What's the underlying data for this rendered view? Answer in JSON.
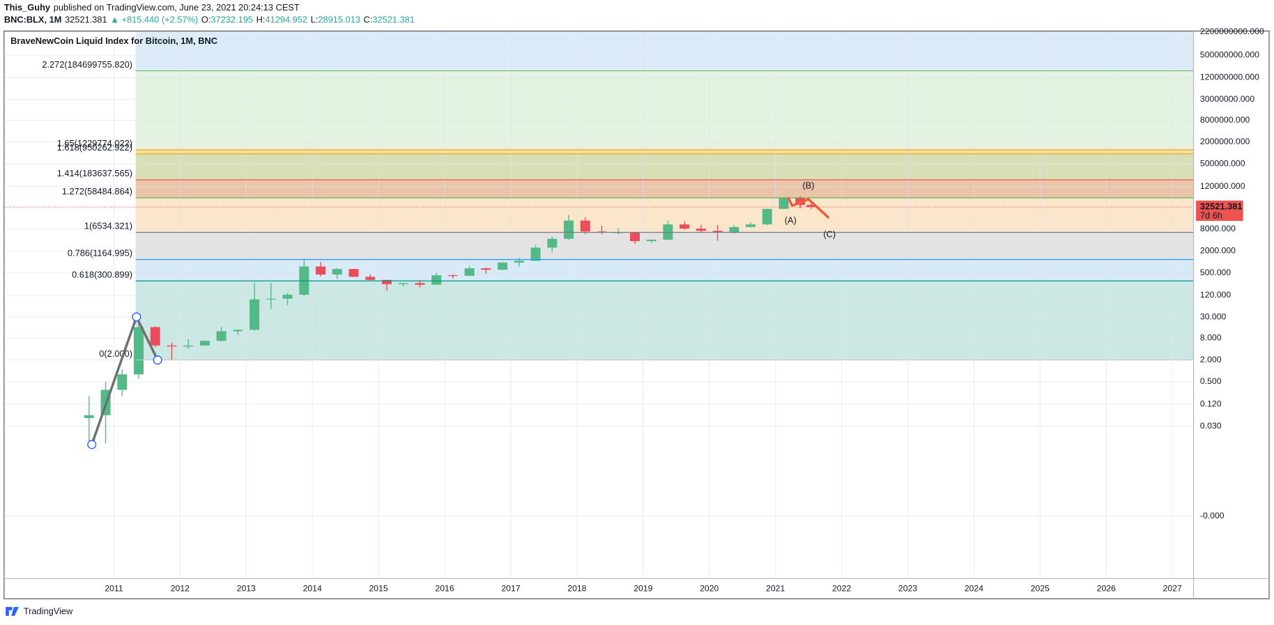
{
  "header": {
    "author": "This_Guhy",
    "published": "published on TradingView.com, June 23, 2021 20:24:13 CEST",
    "symbol": "BNC:BLX, 1M",
    "change": "+815.440 (+2.57%)",
    "open_label": "O:",
    "high_label": "H:",
    "low_label": "L:",
    "close_label": "C:"
  },
  "footer": {
    "brand": "TradingView"
  },
  "chart_data": {
    "type": "candlestick",
    "title": "BraveNewCoin Liquid Index for Bitcoin, 1M, BNC",
    "x": [
      "2010-07",
      "2010-10",
      "2011-01",
      "2011-04",
      "2011-07",
      "2011-10",
      "2012-01",
      "2012-04",
      "2012-07",
      "2012-10",
      "2013-01",
      "2013-04",
      "2013-07",
      "2013-10",
      "2014-01",
      "2014-04",
      "2014-07",
      "2014-10",
      "2015-01",
      "2015-04",
      "2015-07",
      "2015-10",
      "2016-01",
      "2016-04",
      "2016-07",
      "2016-10",
      "2017-01",
      "2017-04",
      "2017-07",
      "2017-10",
      "2018-01",
      "2018-04",
      "2018-07",
      "2018-10",
      "2019-01",
      "2019-04",
      "2019-07",
      "2019-10",
      "2020-01",
      "2020-04",
      "2020-07",
      "2020-10",
      "2021-01",
      "2021-04",
      "2021-06"
    ],
    "open": [
      0.05,
      0.06,
      0.3,
      0.8,
      16,
      5,
      4.7,
      5,
      6.7,
      12.4,
      13.5,
      93,
      97,
      125,
      750,
      450,
      640,
      390,
      320,
      245,
      262,
      236,
      430,
      416,
      670,
      610,
      960,
      1080,
      2480,
      4340,
      13800,
      6900,
      6400,
      6600,
      3750,
      4100,
      10800,
      8300,
      7200,
      6400,
      9150,
      10800,
      29000,
      58800,
      37232.195
    ],
    "high": [
      0.2,
      0.5,
      1.1,
      32,
      17,
      6,
      7.5,
      7,
      16,
      13.8,
      266,
      266,
      140,
      1240,
      1000,
      680,
      650,
      460,
      320,
      260,
      320,
      500,
      460,
      780,
      700,
      990,
      1300,
      2980,
      5000,
      19800,
      17200,
      9990,
      8500,
      6900,
      4200,
      13800,
      13200,
      10500,
      10500,
      10400,
      12500,
      29300,
      61800,
      64900,
      41294.952
    ],
    "low": [
      0.01,
      0.01,
      0.2,
      0.6,
      4.5,
      2,
      4,
      4.9,
      6.5,
      9.6,
      13,
      50,
      65,
      118,
      400,
      340,
      380,
      310,
      160,
      210,
      200,
      236,
      350,
      410,
      470,
      600,
      750,
      1060,
      1830,
      4100,
      5900,
      5800,
      5880,
      3150,
      3350,
      4050,
      7700,
      6500,
      3850,
      6150,
      8900,
      10400,
      28000,
      30000,
      28915.013
    ],
    "close": [
      0.06,
      0.3,
      0.8,
      16,
      5,
      4.7,
      5,
      6.7,
      12.4,
      13.5,
      93,
      97,
      125,
      750,
      450,
      640,
      390,
      320,
      245,
      262,
      236,
      430,
      416,
      670,
      610,
      960,
      1080,
      2480,
      4340,
      13800,
      6900,
      6400,
      6600,
      3750,
      4100,
      10800,
      8300,
      7200,
      6400,
      9150,
      10800,
      29000,
      58800,
      37232,
      32521.381
    ],
    "up_color": "#53b987",
    "down_color": "#eb4d5c",
    "log_scale": true,
    "grid": true,
    "ylim": [
      1.9e-06,
      2300000000
    ],
    "yticks": [
      {
        "value": 2200000000,
        "label": "2200000000.000"
      },
      {
        "value": 500000000,
        "label": "500000000.000"
      },
      {
        "value": 120000000,
        "label": "120000000.000"
      },
      {
        "value": 30000000,
        "label": "30000000.000"
      },
      {
        "value": 8000000,
        "label": "8000000.000"
      },
      {
        "value": 2000000,
        "label": "2000000.000"
      },
      {
        "value": 500000,
        "label": "500000.000"
      },
      {
        "value": 120000,
        "label": "120000.000"
      },
      {
        "value": 8000,
        "label": "8000.000"
      },
      {
        "value": 2000,
        "label": "2000.000"
      },
      {
        "value": 500,
        "label": "500.000"
      },
      {
        "value": 120,
        "label": "120.000"
      },
      {
        "value": 30,
        "label": "30.000"
      },
      {
        "value": 8,
        "label": "8.000"
      },
      {
        "value": 2,
        "label": "2.000"
      },
      {
        "value": 0.5,
        "label": "0.500"
      },
      {
        "value": 0.12,
        "label": "0.120"
      },
      {
        "value": 0.03,
        "label": "0.030"
      },
      {
        "value": 0.0001,
        "label": "-0.000"
      }
    ],
    "xlim": [
      2009.34,
      2027.32
    ],
    "xticks": [
      2011,
      2012,
      2013,
      2014,
      2015,
      2016,
      2017,
      2018,
      2019,
      2020,
      2021,
      2022,
      2023,
      2024,
      2025,
      2026,
      2027
    ],
    "price_tag_color": "#ef5350",
    "countdown": "7d 6h",
    "top_band": "#dcebf8",
    "fib_levels": [
      {
        "label": "2.272(184699755.820)",
        "price": 184699755.82,
        "color": "#66bb6a",
        "band": "#e4f2e2"
      },
      {
        "label": "1.65(1229774.022)",
        "price": 1229774.022,
        "color": "#ff9800",
        "band": "#f1e4a6"
      },
      {
        "label": "1.618(950262.922)",
        "price": 950262.922,
        "color": "#ff9800",
        "band": "#d6dfb6"
      },
      {
        "label": "1.414(183637.565)",
        "price": 183637.565,
        "color": "#f44336",
        "band": "#ecc4a9"
      },
      {
        "label": "1.272(58484.864)",
        "price": 58484.864,
        "color": "#4caf50",
        "band": "#fbe6cb"
      },
      {
        "label": "1(6534.321)",
        "price": 6534.321,
        "color": "#787b86",
        "band": "#e3e3e3"
      },
      {
        "label": "0.786(1164.995)",
        "price": 1164.995,
        "color": "#2196f3",
        "band": "#d8eaf6"
      },
      {
        "label": "0.618(300.899)",
        "price": 300.899,
        "color": "#009688",
        "band": "#cce8e4"
      },
      {
        "label": "0(2.000)",
        "price": 2,
        "color": "#c8c8c8",
        "band": null
      }
    ],
    "annotations": [
      "(A)",
      "(B)",
      "(C)"
    ]
  }
}
